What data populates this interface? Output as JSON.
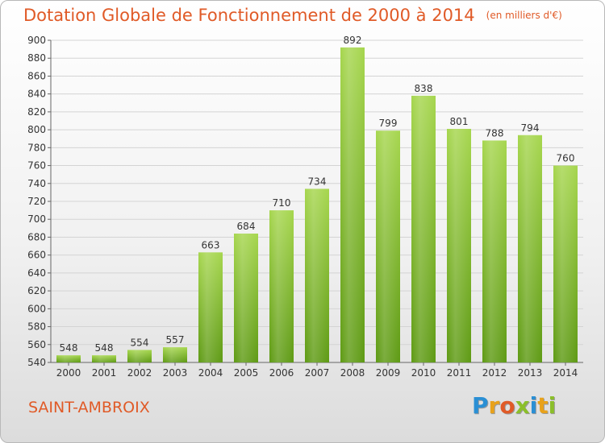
{
  "page": {
    "title": "Dotation Globale de Fonctionnement de 2000 à 2014",
    "subtitle": "(en milliers d'€)",
    "place": "SAINT-AMBROIX",
    "logo": {
      "letters": [
        "P",
        "r",
        "o",
        "x",
        "i",
        "t",
        "i"
      ],
      "colors": [
        "#2a8fd4",
        "#e8a21b",
        "#e05a27",
        "#8bbf2a",
        "#2a8fd4",
        "#e8a21b",
        "#8bbf2a"
      ]
    }
  },
  "chart_data": {
    "type": "bar",
    "title": "Dotation Globale de Fonctionnement de 2000 à 2014",
    "subtitle": "(en milliers d'€)",
    "xlabel": "",
    "ylabel": "",
    "categories": [
      "2000",
      "2001",
      "2002",
      "2003",
      "2004",
      "2005",
      "2006",
      "2007",
      "2008",
      "2009",
      "2010",
      "2011",
      "2012",
      "2013",
      "2014"
    ],
    "values": [
      548,
      548,
      554,
      557,
      663,
      684,
      710,
      734,
      892,
      799,
      838,
      801,
      788,
      794,
      760
    ],
    "ylim": [
      540,
      900
    ],
    "yticks": [
      540,
      560,
      580,
      600,
      620,
      640,
      660,
      680,
      700,
      720,
      740,
      760,
      780,
      800,
      820,
      840,
      860,
      880,
      900
    ],
    "grid": true,
    "bar_color": "#8cc43c"
  }
}
